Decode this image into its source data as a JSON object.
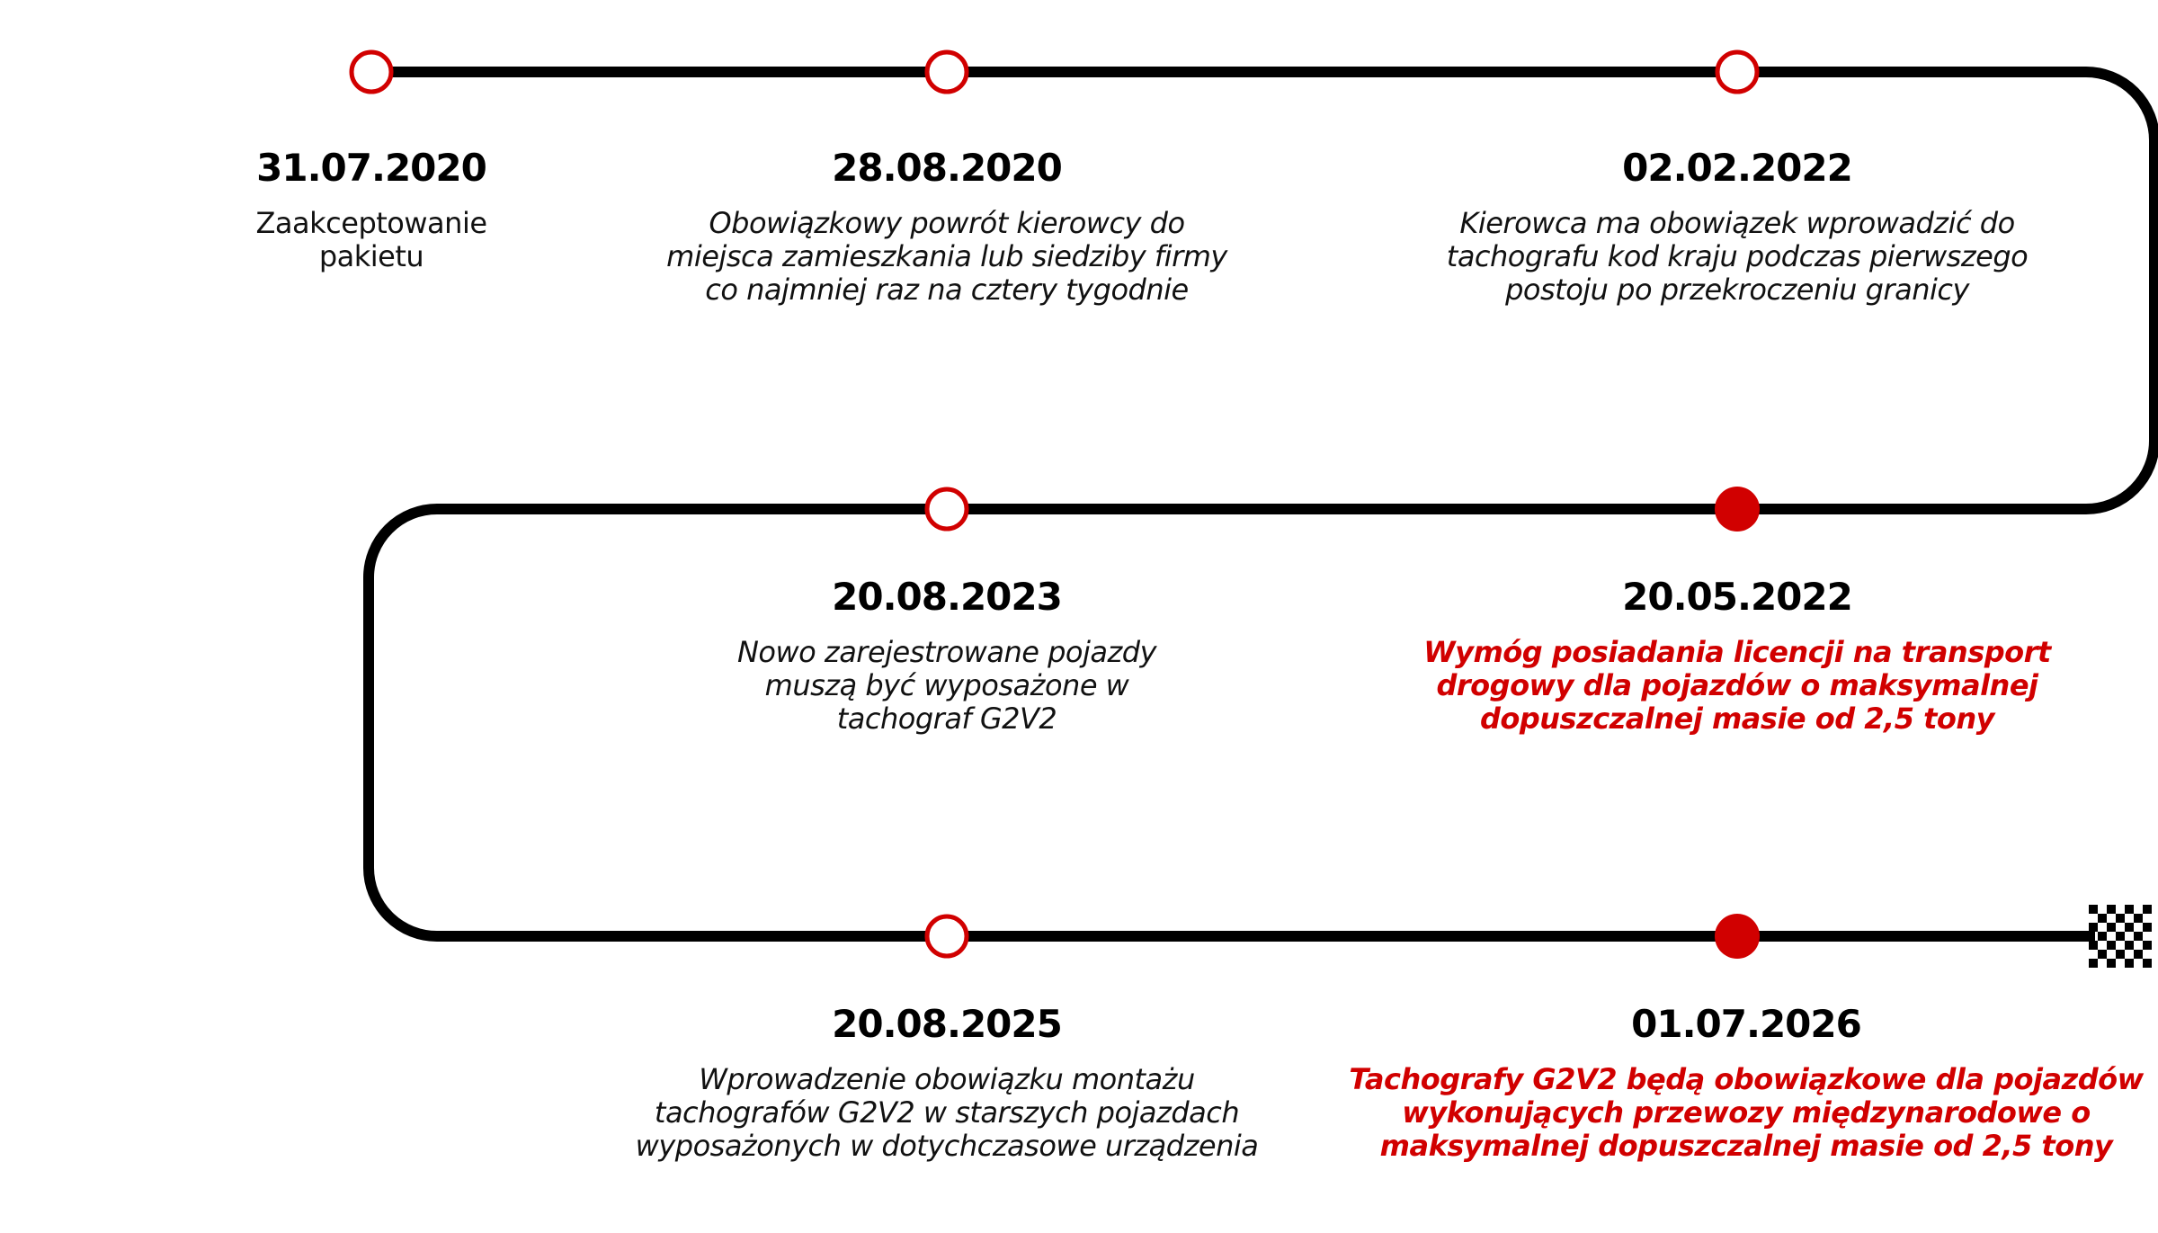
{
  "colors": {
    "track": "#000000",
    "accent": "#d10000",
    "text": "#111111"
  },
  "finish_icon": "checkered-flag-icon",
  "events": [
    {
      "date": "31.07.2020",
      "lines": [
        "Zaakceptowanie",
        "pakietu"
      ],
      "marker": "hollow",
      "style": "plain"
    },
    {
      "date": "28.08.2020",
      "lines": [
        "Obowiązkowy powrót kierowcy do",
        "miejsca zamieszkania lub siedziby firmy",
        "co najmniej raz na cztery tygodnie"
      ],
      "marker": "hollow",
      "style": "italic"
    },
    {
      "date": "02.02.2022",
      "lines": [
        "Kierowca ma obowiązek wprowadzić do",
        "tachografu kod kraju podczas pierwszego",
        "postoju po przekroczeniu granicy"
      ],
      "marker": "hollow",
      "style": "italic"
    },
    {
      "date": "20.05.2022",
      "lines": [
        "Wymóg posiadania licencji na transport",
        "drogowy dla pojazdów o maksymalnej",
        "dopuszczalnej masie od 2,5 tony"
      ],
      "marker": "filled",
      "style": "highlight"
    },
    {
      "date": "20.08.2023",
      "lines": [
        "Nowo zarejestrowane pojazdy",
        "muszą być wyposażone w",
        "tachograf G2V2"
      ],
      "marker": "hollow",
      "style": "italic"
    },
    {
      "date": "20.08.2025",
      "lines": [
        "Wprowadzenie obowiązku montażu",
        "tachografów G2V2 w starszych pojazdach",
        "wyposażonych w dotychczasowe urządzenia"
      ],
      "marker": "hollow",
      "style": "italic"
    },
    {
      "date": "01.07.2026",
      "lines": [
        "Tachografy G2V2 będą obowiązkowe dla pojazdów",
        "wykonujących przewozy międzynarodowe o",
        "maksymalnej dopuszczalnej masie od 2,5 tony"
      ],
      "marker": "filled",
      "style": "highlight"
    }
  ]
}
